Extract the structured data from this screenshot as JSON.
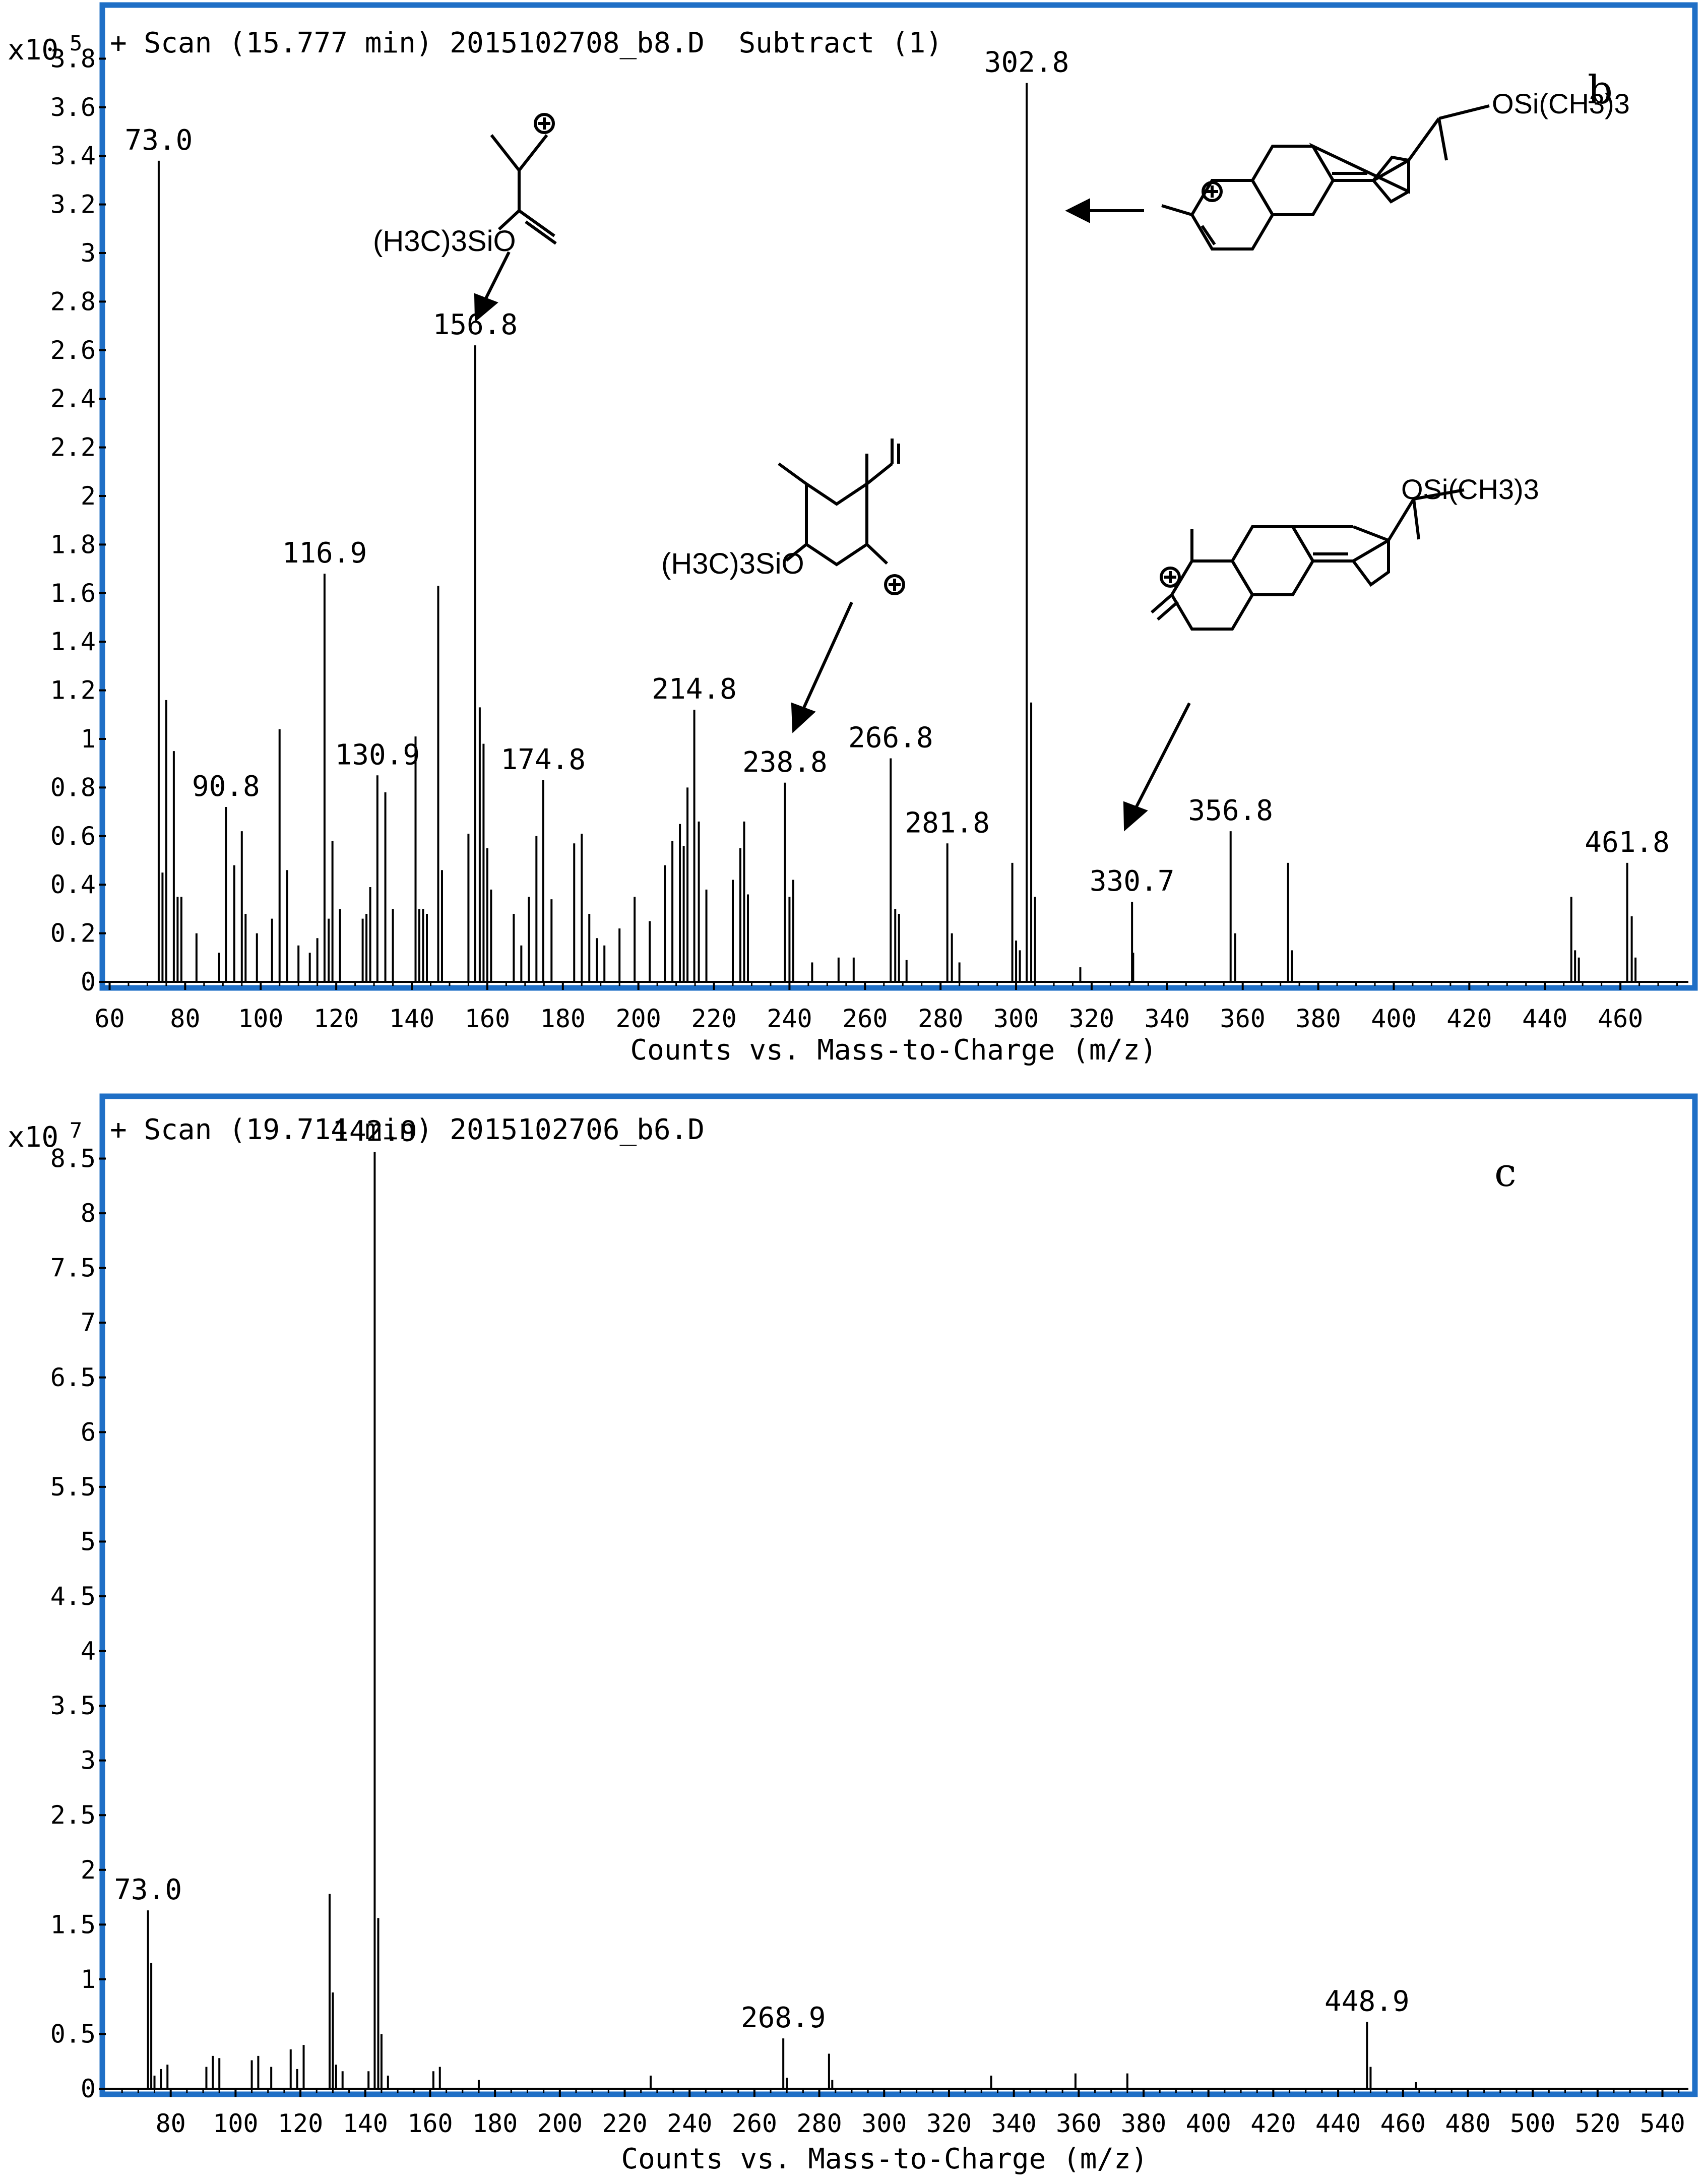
{
  "colors": {
    "frame": "#1f6fc6",
    "stick": "#000000",
    "axis": "#000000",
    "background": "#ffffff"
  },
  "chart_data": [
    {
      "type": "bar",
      "panel_label": "b",
      "header": "+ Scan (15.777 min) 2015102708_b8.D  Subtract (1)",
      "scale_prefix": "x10",
      "scale_exponent": "5",
      "xlabel": "Counts vs. Mass-to-Charge (m/z)",
      "xlim": [
        59,
        478
      ],
      "ylim": [
        0,
        4.0
      ],
      "x_ticks": [
        60,
        80,
        100,
        120,
        140,
        160,
        180,
        200,
        220,
        240,
        260,
        280,
        300,
        320,
        340,
        360,
        380,
        400,
        420,
        440,
        460
      ],
      "x_tick_labels": [
        "60",
        "80",
        "100",
        "120",
        "140",
        "160",
        "180",
        "200",
        "220",
        "240",
        "260",
        "280",
        "300",
        "320",
        "340",
        "360",
        "380",
        "400",
        "420",
        "440",
        "460"
      ],
      "y_ticks": [
        0,
        0.2,
        0.4,
        0.6,
        0.8,
        1,
        1.2,
        1.4,
        1.6,
        1.8,
        2,
        2.2,
        2.4,
        2.6,
        2.8,
        3,
        3.2,
        3.4,
        3.6,
        3.8
      ],
      "y_tick_labels": [
        "0",
        "0.2",
        "0.4",
        "0.6",
        "0.8",
        "1",
        "1.2",
        "1.4",
        "1.6",
        "1.8",
        "2",
        "2.2",
        "2.4",
        "2.6",
        "2.8",
        "3",
        "3.2",
        "3.4",
        "3.6",
        "3.8"
      ],
      "peaks": [
        [
          73.0,
          3.38
        ],
        [
          74,
          0.45
        ],
        [
          75,
          1.16
        ],
        [
          77,
          0.95
        ],
        [
          78,
          0.35
        ],
        [
          79,
          0.35
        ],
        [
          83,
          0.2
        ],
        [
          89,
          0.12
        ],
        [
          90.8,
          0.72
        ],
        [
          93,
          0.48
        ],
        [
          95,
          0.62
        ],
        [
          96,
          0.28
        ],
        [
          99,
          0.2
        ],
        [
          103,
          0.26
        ],
        [
          105,
          1.04
        ],
        [
          107,
          0.46
        ],
        [
          110,
          0.15
        ],
        [
          113,
          0.12
        ],
        [
          115,
          0.18
        ],
        [
          116.9,
          1.68
        ],
        [
          118,
          0.26
        ],
        [
          119,
          0.58
        ],
        [
          121,
          0.3
        ],
        [
          127,
          0.26
        ],
        [
          128,
          0.28
        ],
        [
          129,
          0.39
        ],
        [
          130.9,
          0.85
        ],
        [
          133,
          0.78
        ],
        [
          135,
          0.3
        ],
        [
          141,
          1.01
        ],
        [
          142,
          0.3
        ],
        [
          143,
          0.3
        ],
        [
          144,
          0.28
        ],
        [
          147,
          1.63
        ],
        [
          148,
          0.46
        ],
        [
          155,
          0.61
        ],
        [
          156.8,
          2.62
        ],
        [
          158,
          1.13
        ],
        [
          159,
          0.98
        ],
        [
          160,
          0.55
        ],
        [
          161,
          0.38
        ],
        [
          167,
          0.28
        ],
        [
          169,
          0.15
        ],
        [
          171,
          0.35
        ],
        [
          173,
          0.6
        ],
        [
          174.8,
          0.83
        ],
        [
          177,
          0.34
        ],
        [
          183,
          0.57
        ],
        [
          185,
          0.61
        ],
        [
          187,
          0.28
        ],
        [
          189,
          0.18
        ],
        [
          191,
          0.15
        ],
        [
          195,
          0.22
        ],
        [
          199,
          0.35
        ],
        [
          203,
          0.25
        ],
        [
          207,
          0.48
        ],
        [
          209,
          0.58
        ],
        [
          211,
          0.65
        ],
        [
          212,
          0.56
        ],
        [
          213,
          0.8
        ],
        [
          214.8,
          1.12
        ],
        [
          216,
          0.66
        ],
        [
          218,
          0.38
        ],
        [
          225,
          0.42
        ],
        [
          227,
          0.55
        ],
        [
          228,
          0.66
        ],
        [
          229,
          0.36
        ],
        [
          238.8,
          0.82
        ],
        [
          240,
          0.35
        ],
        [
          241,
          0.42
        ],
        [
          246,
          0.08
        ],
        [
          253,
          0.1
        ],
        [
          257,
          0.1
        ],
        [
          266.8,
          0.92
        ],
        [
          268,
          0.3
        ],
        [
          269,
          0.28
        ],
        [
          271,
          0.09
        ],
        [
          281.8,
          0.57
        ],
        [
          283,
          0.2
        ],
        [
          285,
          0.08
        ],
        [
          299,
          0.49
        ],
        [
          300,
          0.17
        ],
        [
          301,
          0.13
        ],
        [
          302.8,
          3.7
        ],
        [
          304,
          1.15
        ],
        [
          305,
          0.35
        ],
        [
          317,
          0.06
        ],
        [
          330.7,
          0.33
        ],
        [
          331,
          0.12
        ],
        [
          356.8,
          0.62
        ],
        [
          358,
          0.2
        ],
        [
          372,
          0.49
        ],
        [
          373,
          0.13
        ],
        [
          447,
          0.35
        ],
        [
          448,
          0.13
        ],
        [
          449,
          0.1
        ],
        [
          461.8,
          0.49
        ],
        [
          463,
          0.27
        ],
        [
          464,
          0.1
        ]
      ],
      "labels": [
        {
          "x": 73.0,
          "text": "73.0"
        },
        {
          "x": 90.8,
          "text": "90.8"
        },
        {
          "x": 116.9,
          "text": "116.9"
        },
        {
          "x": 130.9,
          "text": "130.9"
        },
        {
          "x": 156.8,
          "text": "156.8"
        },
        {
          "x": 174.8,
          "text": "174.8"
        },
        {
          "x": 214.8,
          "text": "214.8"
        },
        {
          "x": 238.8,
          "text": "238.8"
        },
        {
          "x": 266.8,
          "text": "266.8"
        },
        {
          "x": 281.8,
          "text": "281.8"
        },
        {
          "x": 302.8,
          "text": "302.8"
        },
        {
          "x": 330.7,
          "text": "330.7"
        },
        {
          "x": 356.8,
          "text": "356.8"
        },
        {
          "x": 461.8,
          "text": "461.8"
        }
      ],
      "structures": {
        "s1_group": "(H3C)3SiO",
        "s2_group": "OSi(CH3)3",
        "s3_group": "(H3C)3SiO",
        "s4_group": "OSi(CH3)3",
        "charge": "+"
      }
    },
    {
      "type": "bar",
      "panel_label": "c",
      "header": "+ Scan (19.714 min) 2015102706_b6.D",
      "scale_prefix": "x10",
      "scale_exponent": "7",
      "xlabel": "Counts vs. Mass-to-Charge (m/z)",
      "xlim": [
        60,
        548
      ],
      "ylim": [
        0,
        9.0
      ],
      "x_ticks": [
        80,
        100,
        120,
        140,
        160,
        180,
        200,
        220,
        240,
        260,
        280,
        300,
        320,
        340,
        360,
        380,
        400,
        420,
        440,
        460,
        480,
        500,
        520,
        540
      ],
      "x_tick_labels": [
        "80",
        "100",
        "120",
        "140",
        "160",
        "180",
        "200",
        "220",
        "240",
        "260",
        "280",
        "300",
        "320",
        "340",
        "360",
        "380",
        "400",
        "420",
        "440",
        "460",
        "480",
        "500",
        "520",
        "540"
      ],
      "y_ticks": [
        0,
        0.5,
        1,
        1.5,
        2,
        2.5,
        3,
        3.5,
        4,
        4.5,
        5,
        5.5,
        6,
        6.5,
        7,
        7.5,
        8,
        8.5
      ],
      "y_tick_labels": [
        "0",
        "0.5",
        "1",
        "1.5",
        "2",
        "2.5",
        "3",
        "3.5",
        "4",
        "4.5",
        "5",
        "5.5",
        "6",
        "6.5",
        "7",
        "7.5",
        "8",
        "8.5"
      ],
      "peaks": [
        [
          73.0,
          1.63
        ],
        [
          74,
          1.15
        ],
        [
          75,
          0.12
        ],
        [
          77,
          0.18
        ],
        [
          79,
          0.22
        ],
        [
          91,
          0.2
        ],
        [
          93,
          0.3
        ],
        [
          95,
          0.28
        ],
        [
          105,
          0.26
        ],
        [
          107,
          0.3
        ],
        [
          111,
          0.2
        ],
        [
          117,
          0.36
        ],
        [
          119,
          0.18
        ],
        [
          121,
          0.4
        ],
        [
          129,
          1.78
        ],
        [
          130,
          0.88
        ],
        [
          131,
          0.22
        ],
        [
          133,
          0.16
        ],
        [
          141,
          0.16
        ],
        [
          142.9,
          8.56
        ],
        [
          144,
          1.56
        ],
        [
          145,
          0.5
        ],
        [
          147,
          0.12
        ],
        [
          161,
          0.16
        ],
        [
          163,
          0.2
        ],
        [
          175,
          0.08
        ],
        [
          228,
          0.12
        ],
        [
          268.9,
          0.46
        ],
        [
          270,
          0.1
        ],
        [
          283,
          0.32
        ],
        [
          284,
          0.08
        ],
        [
          333,
          0.12
        ],
        [
          359,
          0.14
        ],
        [
          375,
          0.14
        ],
        [
          448.9,
          0.61
        ],
        [
          450,
          0.2
        ],
        [
          464,
          0.06
        ]
      ],
      "labels": [
        {
          "x": 73.0,
          "text": "73.0"
        },
        {
          "x": 142.9,
          "text": "142.9"
        },
        {
          "x": 268.9,
          "text": "268.9"
        },
        {
          "x": 448.9,
          "text": "448.9"
        }
      ]
    }
  ]
}
